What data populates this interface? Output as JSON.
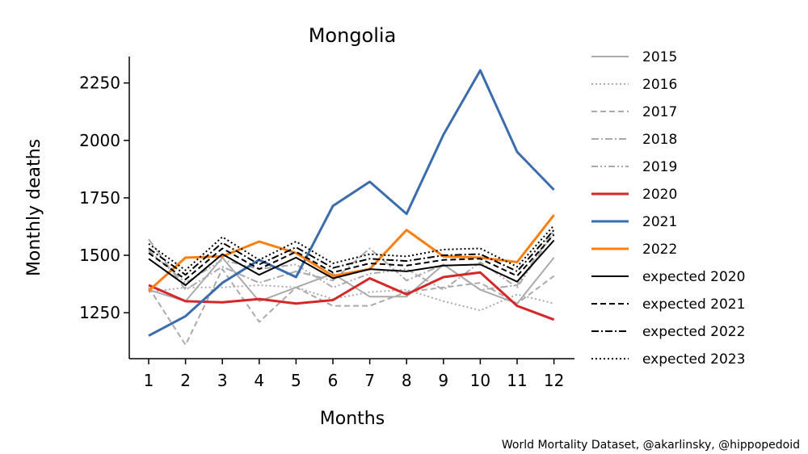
{
  "chart_data": {
    "type": "line",
    "title": "Mongolia",
    "xlabel": "Months",
    "ylabel": "Monthly deaths",
    "x": [
      1,
      2,
      3,
      4,
      5,
      6,
      7,
      8,
      9,
      10,
      11,
      12
    ],
    "x_ticks": [
      "1",
      "2",
      "3",
      "4",
      "5",
      "6",
      "7",
      "8",
      "9",
      "10",
      "11",
      "12"
    ],
    "y_ticks": [
      1250,
      1500,
      1750,
      2000,
      2250
    ],
    "ylim": [
      1050,
      2365
    ],
    "grid": false,
    "legend_position": "right",
    "series": [
      {
        "name": "2015",
        "color": "#aaaaaa",
        "dash": "solid",
        "width": 2,
        "values": [
          1350,
          1300,
          1490,
          1300,
          1360,
          1420,
          1320,
          1320,
          1460,
          1350,
          1290,
          1490
        ]
      },
      {
        "name": "2016",
        "color": "#aaaaaa",
        "dash": "dotted",
        "width": 2,
        "values": [
          1340,
          1360,
          1360,
          1370,
          1360,
          1310,
          1340,
          1350,
          1300,
          1260,
          1330,
          1290
        ]
      },
      {
        "name": "2017",
        "color": "#aaaaaa",
        "dash": "dashed",
        "width": 2,
        "values": [
          1360,
          1110,
          1440,
          1210,
          1360,
          1280,
          1280,
          1340,
          1360,
          1380,
          1290,
          1410
        ]
      },
      {
        "name": "2018",
        "color": "#aaaaaa",
        "dash": "dashdot",
        "width": 2,
        "values": [
          1570,
          1350,
          1450,
          1380,
          1430,
          1390,
          1530,
          1390,
          1460,
          1350,
          1370,
          1610
        ]
      },
      {
        "name": "2019",
        "color": "#aaaaaa",
        "dash": "dashdotdot",
        "width": 2,
        "values": [
          1520,
          1380,
          1480,
          1440,
          1460,
          1360,
          1420,
          1440,
          1350,
          1470,
          1360,
          1600
        ]
      },
      {
        "name": "2020",
        "color": "#d62728",
        "dash": "solid",
        "width": 3,
        "values": [
          1370,
          1300,
          1295,
          1310,
          1290,
          1305,
          1400,
          1330,
          1405,
          1425,
          1280,
          1220
        ]
      },
      {
        "name": "2021",
        "color": "#3a6cae",
        "dash": "solid",
        "width": 3,
        "values": [
          1150,
          1235,
          1380,
          1480,
          1405,
          1715,
          1820,
          1680,
          2025,
          2305,
          1950,
          1785
        ]
      },
      {
        "name": "2022",
        "color": "#ff7f0e",
        "dash": "solid",
        "width": 3,
        "values": [
          1345,
          1490,
          1495,
          1560,
          1510,
          1410,
          1440,
          1610,
          1495,
          1490,
          1470,
          1675
        ]
      },
      {
        "name": "expected 2020",
        "color": "#000000",
        "dash": "solid",
        "width": 2,
        "values": [
          1485,
          1370,
          1505,
          1415,
          1490,
          1400,
          1440,
          1430,
          1455,
          1460,
          1385,
          1565
        ]
      },
      {
        "name": "expected 2021",
        "color": "#000000",
        "dash": "dashed",
        "width": 2,
        "values": [
          1510,
          1395,
          1530,
          1440,
          1515,
          1425,
          1465,
          1455,
          1480,
          1485,
          1410,
          1590
        ]
      },
      {
        "name": "expected 2022",
        "color": "#000000",
        "dash": "dashdot",
        "width": 2,
        "values": [
          1530,
          1415,
          1555,
          1460,
          1535,
          1445,
          1485,
          1475,
          1500,
          1505,
          1430,
          1610
        ]
      },
      {
        "name": "expected 2023",
        "color": "#000000",
        "dash": "dotted",
        "width": 2,
        "values": [
          1550,
          1435,
          1580,
          1480,
          1560,
          1465,
          1505,
          1495,
          1525,
          1530,
          1450,
          1630
        ]
      }
    ]
  },
  "credit": "World Mortality Dataset, @akarlinsky, @hippopedoid"
}
